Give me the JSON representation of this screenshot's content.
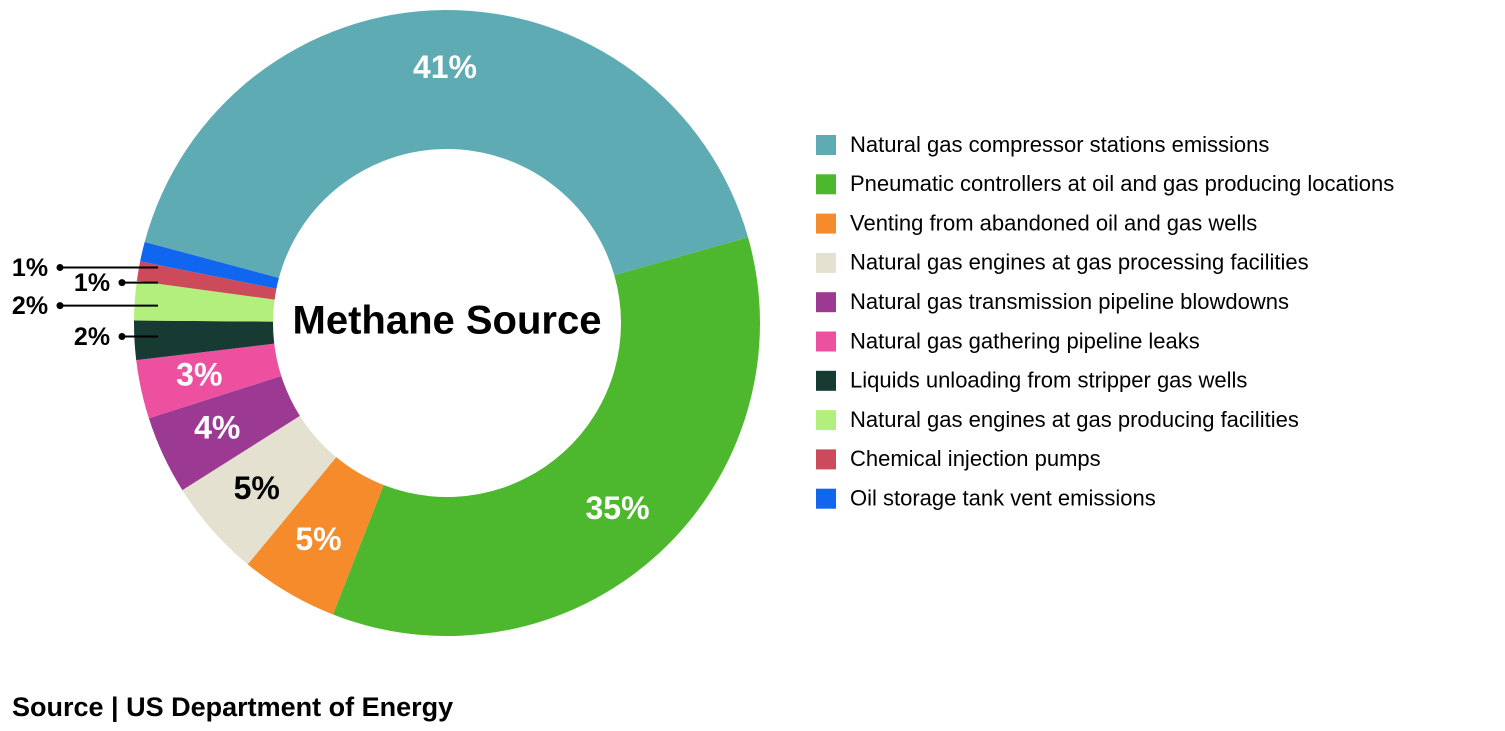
{
  "chart_data": {
    "type": "pie",
    "title": "Methane Source",
    "categories": [
      "Natural gas compressor stations emissions",
      "Pneumatic controllers at oil and gas producing locations",
      "Venting from abandoned oil and gas wells",
      "Natural gas engines at gas processing facilities",
      "Natural gas transmission pipeline blowdowns",
      "Natural gas gathering pipeline leaks",
      "Liquids unloading from stripper gas wells",
      "Natural gas engines at gas producing facilities",
      "Chemical injection pumps",
      "Oil storage tank vent emissions"
    ],
    "values": [
      41,
      35,
      5,
      5,
      4,
      3,
      2,
      2,
      1,
      1
    ],
    "value_labels": [
      "41%",
      "35%",
      "5%",
      "5%",
      "4%",
      "3%",
      "2%",
      "2%",
      "1%",
      "1%"
    ],
    "colors": [
      "#5eabb4",
      "#4db82d",
      "#f68b2b",
      "#e4e1d0",
      "#9c3a93",
      "#ee50a0",
      "#173a32",
      "#b2ef7c",
      "#cc4a59",
      "#1166ef"
    ],
    "legend": "right"
  },
  "source": "Source | US Department of Energy"
}
